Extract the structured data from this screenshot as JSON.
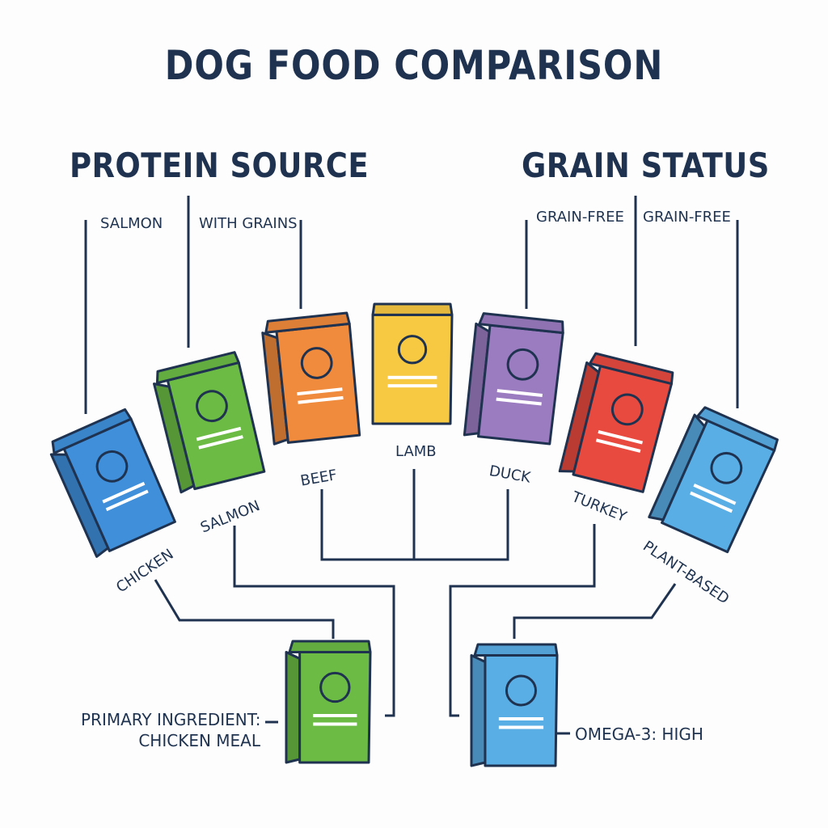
{
  "title": "DOG FOOD COMPARISON",
  "headings": {
    "protein": "PROTEIN SOURCE",
    "grain": "GRAIN STATUS"
  },
  "top_labels": {
    "salmon": "SALMON",
    "with_grains": "WITH GRAINS",
    "grain_free_1": "GRAIN-FREE",
    "grain_free_2": "GRAIN-FREE"
  },
  "bags": [
    {
      "name": "CHICKEN",
      "color": "#3f8fdb"
    },
    {
      "name": "SALMON",
      "color": "#6cbb45"
    },
    {
      "name": "BEEF",
      "color": "#f08a3c"
    },
    {
      "name": "LAMB",
      "color": "#f7c842"
    },
    {
      "name": "DUCK",
      "color": "#9b7cc0"
    },
    {
      "name": "TURKEY",
      "color": "#e84a3f"
    },
    {
      "name": "PLANT-BASED",
      "color": "#5aaee6"
    }
  ],
  "details": {
    "left": {
      "line1": "PRIMARY INGREDIENT:",
      "line2": "CHICKEN MEAL",
      "color": "#6cbb45"
    },
    "right": {
      "line1": "OMEGA-3: HIGH",
      "color": "#5aaee6"
    }
  },
  "colors": {
    "ink": "#1f3350",
    "stripe": "#ffffff"
  }
}
